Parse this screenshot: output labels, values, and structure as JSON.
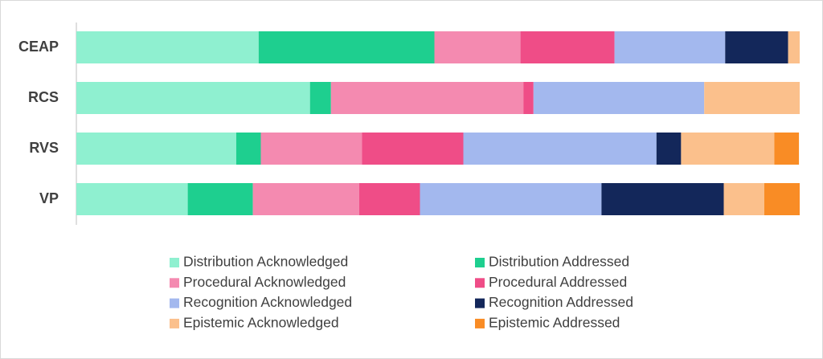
{
  "chart_data": {
    "type": "stacked-bar-horizontal",
    "categories": [
      "CEAP",
      "RCS",
      "RVS",
      "VP"
    ],
    "xlim": [
      0,
      100
    ],
    "series": [
      {
        "name": "Distribution Acknowledged",
        "color": "#8ff0d0",
        "values": [
          25.2,
          32.3,
          22.1,
          15.4
        ]
      },
      {
        "name": "Distribution Addressed",
        "color": "#1ecf8f",
        "values": [
          24.3,
          2.9,
          3.4,
          9.0
        ]
      },
      {
        "name": "Procedural Acknowledged",
        "color": "#f48ab0",
        "values": [
          11.9,
          26.6,
          14.0,
          14.7
        ]
      },
      {
        "name": "Procedural Addressed",
        "color": "#ef4d87",
        "values": [
          13.0,
          1.4,
          14.0,
          8.4
        ]
      },
      {
        "name": "Recognition Acknowledged",
        "color": "#a3b8ee",
        "values": [
          15.3,
          23.6,
          26.7,
          25.1
        ]
      },
      {
        "name": "Recognition Addressed",
        "color": "#13275a",
        "values": [
          8.7,
          0,
          3.4,
          16.9
        ]
      },
      {
        "name": "Epistemic Acknowledged",
        "color": "#fbc08c",
        "values": [
          1.6,
          13.2,
          12.9,
          5.6
        ]
      },
      {
        "name": "Epistemic Addressed",
        "color": "#f98c25",
        "values": [
          0,
          0,
          3.4,
          4.9
        ]
      }
    ]
  }
}
